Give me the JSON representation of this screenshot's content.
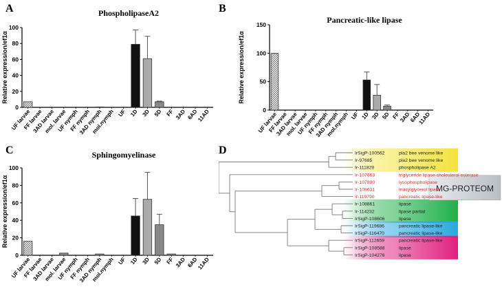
{
  "panel_letters": {
    "a": "A",
    "b": "B",
    "c": "C",
    "d": "D"
  },
  "chart_data": [
    {
      "id": "A",
      "type": "bar",
      "title": "PhospholipaseA2",
      "ylabel": "Relative expression/ef1α",
      "ylim": [
        0,
        100
      ],
      "yticks": [
        0,
        20,
        40,
        60,
        80,
        100
      ],
      "categories": [
        "UF larvae",
        "FF larvae",
        "3AD larvae",
        "mol. larvae",
        "UF nymph",
        "FF nymph",
        "3AD nymph",
        "mol.nymph",
        "UF",
        "1D",
        "3D",
        "5D",
        "FF",
        "3AD",
        "6AD",
        "11AD"
      ],
      "values": [
        7,
        0,
        0,
        0,
        0,
        0,
        0.5,
        0,
        0,
        79,
        61,
        7,
        0,
        0,
        0,
        0
      ],
      "errors": [
        0,
        0,
        0,
        0,
        0,
        0,
        0,
        0,
        0,
        18,
        28,
        0.8,
        0,
        0,
        0,
        0
      ],
      "fills": [
        "hatch",
        "none",
        "none",
        "none",
        "none",
        "none",
        "gray",
        "none",
        "none",
        "#111111",
        "#aaaaaa",
        "#888888",
        "none",
        "none",
        "none",
        "none"
      ]
    },
    {
      "id": "B",
      "type": "bar",
      "title": "Pancreatic-like lipase",
      "ylabel": "Relative expression/ef1α",
      "ylim": [
        0,
        150
      ],
      "yticks": [
        0,
        50,
        100,
        150
      ],
      "categories": [
        "UF larvae",
        "FF larvae",
        "3AD larvae",
        "mol. larvae",
        "UF nymph",
        "FF nymph",
        "3AD nymph",
        "mol.nymph",
        "UF",
        "1D",
        "3D",
        "5D",
        "FF",
        "3AD",
        "6AD",
        "11AD"
      ],
      "values": [
        100,
        0,
        0,
        0,
        0,
        0,
        0,
        0,
        0,
        53,
        26,
        7,
        0,
        0,
        0,
        0
      ],
      "errors": [
        0,
        0,
        0,
        0,
        0,
        0,
        0,
        0,
        0,
        14,
        19,
        2,
        0,
        0,
        0,
        0
      ],
      "fills": [
        "hatch",
        "none",
        "none",
        "none",
        "none",
        "none",
        "none",
        "none",
        "none",
        "#111111",
        "#aaaaaa",
        "#888888",
        "none",
        "none",
        "none",
        "none"
      ]
    },
    {
      "id": "C",
      "type": "bar",
      "title": "Sphingomyelinase",
      "ylabel": "Relative expression/ef1α",
      "ylim": [
        0,
        100
      ],
      "yticks": [
        0,
        20,
        40,
        60,
        80,
        100
      ],
      "categories": [
        "UF larvae",
        "FF larvae",
        "3AD larvae",
        "mol. larvae",
        "UF nymph",
        "FF nymph",
        "3AD nymph",
        "mol.nymph",
        "UF",
        "1D",
        "3D",
        "5D",
        "FF",
        "3AD",
        "6AD",
        "11AD"
      ],
      "values": [
        16,
        0,
        0,
        2.5,
        0,
        0,
        1.5,
        0,
        0,
        45,
        64,
        35,
        1.5,
        0,
        0,
        0
      ],
      "errors": [
        0,
        0,
        0,
        0,
        0,
        0,
        0,
        0,
        0,
        20,
        31,
        12,
        0,
        0,
        0,
        0
      ],
      "fills": [
        "hatch",
        "none",
        "none",
        "gray",
        "none",
        "none",
        "gray",
        "none",
        "none",
        "#111111",
        "#aaaaaa",
        "#888888",
        "gray",
        "none",
        "none",
        "none"
      ]
    }
  ],
  "tree": {
    "legend_label": "MG-PROTEOM",
    "colors": {
      "yellow": "#f4e23a",
      "green": "#1fb04a",
      "blue": "#2aa8e0",
      "magenta": "#e0207e",
      "gray": "#b8bec4",
      "red_text": "#cc3322"
    },
    "leaves": [
      {
        "id": "IrSigP-100562",
        "desc": "pla2 bee venome like",
        "group": "yellow",
        "red": false
      },
      {
        "id": "Ir-97685",
        "desc": "pla2 bee venome like",
        "group": "yellow",
        "red": false
      },
      {
        "id": "Ir-111829",
        "desc": "phospholipase A2",
        "group": "yellow",
        "red": false
      },
      {
        "id": "Ir-107663",
        "desc": "triglyceride lipase-cholesterol esterase",
        "group": "none",
        "red": true
      },
      {
        "id": "Ir-107890",
        "desc": "lysophospholipase",
        "group": "none",
        "red": true
      },
      {
        "id": "Ir-108631",
        "desc": "triacylglycerol lipase",
        "group": "none",
        "red": true
      },
      {
        "id": "Ir-119790",
        "desc": "pancreatic lipase-like",
        "group": "none",
        "red": true
      },
      {
        "id": "Ir-108861",
        "desc": "lipase",
        "group": "green",
        "red": false
      },
      {
        "id": "Ir-114232",
        "desc": "lipase partial",
        "group": "green",
        "red": false
      },
      {
        "id": "IrSigP-108606",
        "desc": "lipase",
        "group": "green",
        "red": false
      },
      {
        "id": "IrSigP-119686",
        "desc": "pancreatic lipase-like",
        "group": "blue",
        "red": false
      },
      {
        "id": "IrSigP-116470",
        "desc": "pancreatic lipase-like",
        "group": "blue",
        "red": false
      },
      {
        "id": "IrSigP-112659",
        "desc": "pancreatic lipase-like",
        "group": "magenta",
        "red": false
      },
      {
        "id": "IrSigP-108588",
        "desc": "lipase",
        "group": "magenta",
        "red": false
      },
      {
        "id": "IrSigP-104276",
        "desc": "lipase",
        "group": "magenta",
        "red": false
      }
    ]
  }
}
